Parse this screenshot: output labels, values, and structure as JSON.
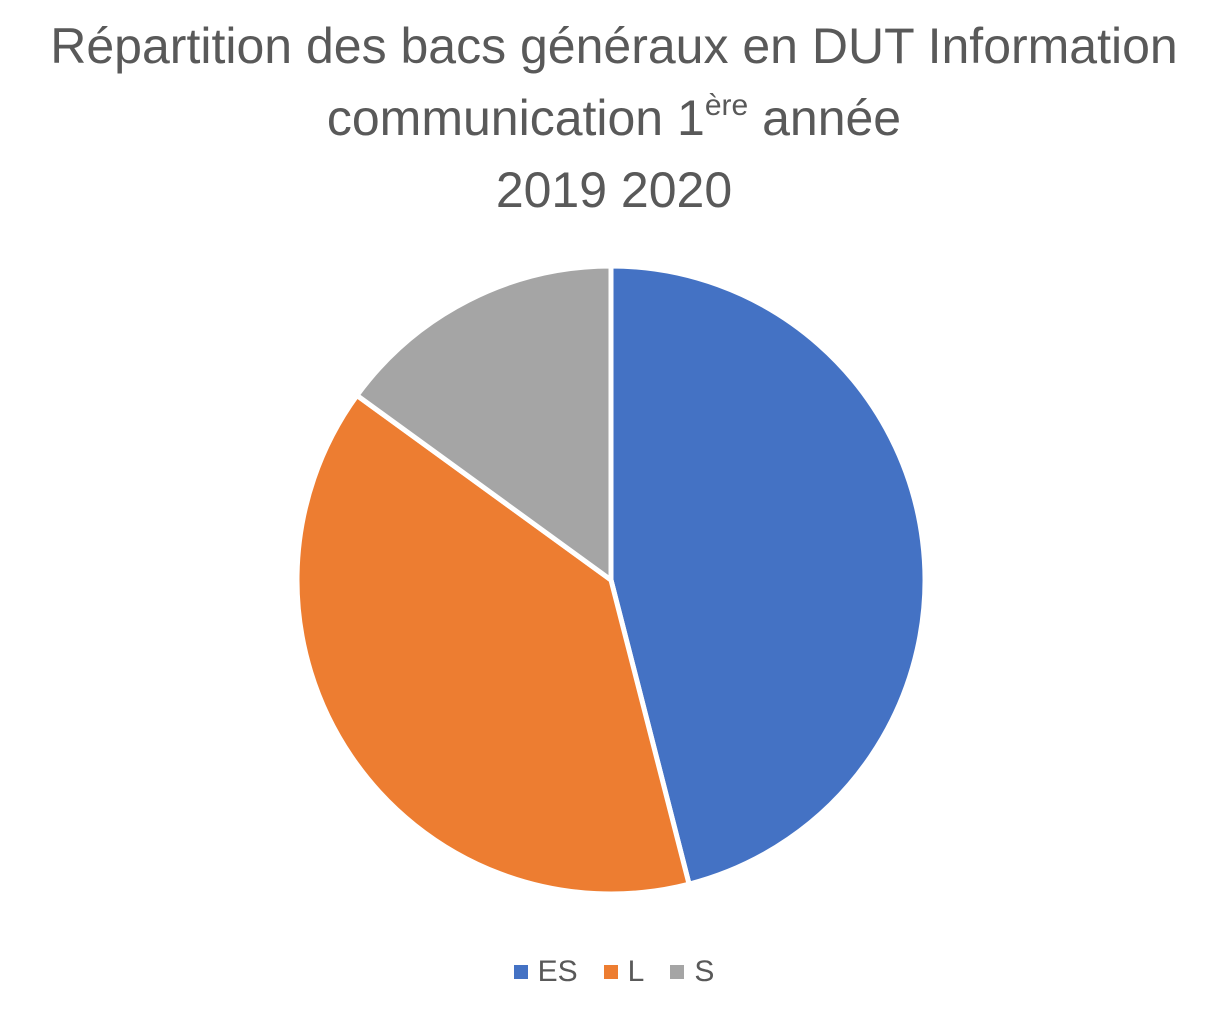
{
  "chart_data": {
    "type": "pie",
    "title": {
      "line1": "Répartition des bacs généraux en DUT Information",
      "line2_before": "communication 1",
      "line2_sup": "ère",
      "line2_after": " année",
      "line3": "2019 2020"
    },
    "series": [
      {
        "name": "ES",
        "value": 46,
        "color": "#4472C4"
      },
      {
        "name": "L",
        "value": 39,
        "color": "#ED7D31"
      },
      {
        "name": "S",
        "value": 15,
        "color": "#A5A5A5"
      }
    ],
    "legend_position": "bottom",
    "start_angle": "top, clockwise"
  }
}
